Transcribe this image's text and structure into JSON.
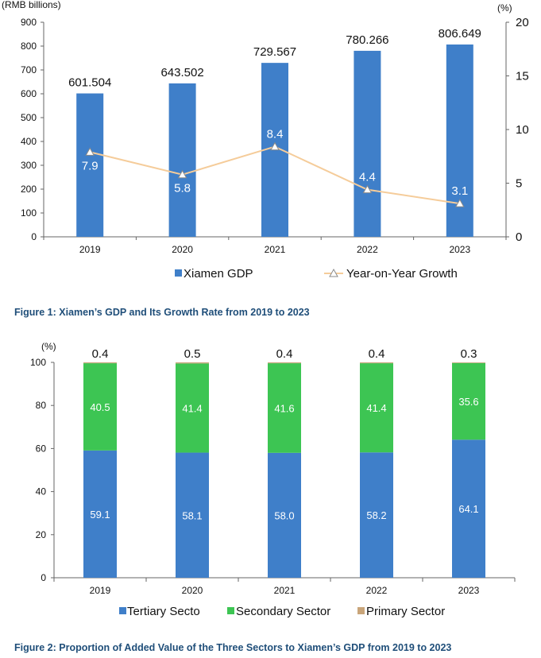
{
  "figure1": {
    "caption": "Figure 1: Xiamen’s GDP and Its Growth Rate from 2019 to 2023",
    "left_unit": "(RMB billions)",
    "right_unit": "(%)",
    "colors": {
      "bar": "#3f7fc9",
      "line": "#f5cc9a",
      "marker_fill": "#ffffff",
      "marker_stroke": "#8a8a8a"
    }
  },
  "figure2": {
    "caption": "Figure 2: Proportion of Added Value of the Three Sectors to Xiamen’s GDP from 2019 to 2023",
    "y_unit": "(%)",
    "colors": {
      "tertiary": "#3f7fc9",
      "secondary": "#3dc553",
      "primary": "#c9a57a"
    }
  },
  "chart_data": [
    {
      "type": "bar",
      "categories": [
        "2019",
        "2020",
        "2021",
        "2022",
        "2023"
      ],
      "series": [
        {
          "name": "Xiamen GDP",
          "type": "bar",
          "axis": "left",
          "values": [
            601.504,
            643.502,
            729.567,
            780.266,
            806.649
          ],
          "labels": [
            "601.504",
            "643.502",
            "729.567",
            "780.266",
            "806.649"
          ]
        },
        {
          "name": "Year-on-Year Growth",
          "type": "line",
          "axis": "right",
          "values": [
            7.9,
            5.8,
            8.4,
            4.4,
            3.1
          ],
          "labels": [
            "7.9",
            "5.8",
            "8.4",
            "4.4",
            "3.1"
          ]
        }
      ],
      "ylim": [
        0,
        900
      ],
      "yticks": [
        "0",
        "100",
        "200",
        "300",
        "400",
        "500",
        "600",
        "700",
        "800",
        "900"
      ],
      "y2lim": [
        0,
        20
      ],
      "y2ticks": [
        "0",
        "5",
        "10",
        "15",
        "20"
      ],
      "ylabel": "(RMB billions)",
      "y2label": "(%)",
      "legend": [
        "Xiamen GDP",
        "Year-on-Year Growth"
      ],
      "legend_position": "bottom"
    },
    {
      "type": "bar",
      "stacked": true,
      "categories": [
        "2019",
        "2020",
        "2021",
        "2022",
        "2023"
      ],
      "series": [
        {
          "name": "Tertiary Sector",
          "legend_label": "Tertiary Secto",
          "values": [
            59.1,
            58.1,
            58.0,
            58.2,
            64.1
          ],
          "labels": [
            "59.1",
            "58.1",
            "58.0",
            "58.2",
            "64.1"
          ]
        },
        {
          "name": "Secondary Sector",
          "legend_label": "Secondary Sector",
          "values": [
            40.5,
            41.4,
            41.6,
            41.4,
            35.6
          ],
          "labels": [
            "40.5",
            "41.4",
            "41.6",
            "41.4",
            "35.6"
          ]
        },
        {
          "name": "Primary Sector",
          "legend_label": "Primary Sector",
          "values": [
            0.4,
            0.5,
            0.4,
            0.4,
            0.3
          ],
          "labels": [
            "0.4",
            "0.5",
            "0.4",
            "0.4",
            "0.3"
          ]
        }
      ],
      "ylim": [
        0,
        100
      ],
      "yticks": [
        "0",
        "20",
        "40",
        "60",
        "80",
        "100"
      ],
      "ylabel": "(%)",
      "legend_position": "bottom"
    }
  ]
}
